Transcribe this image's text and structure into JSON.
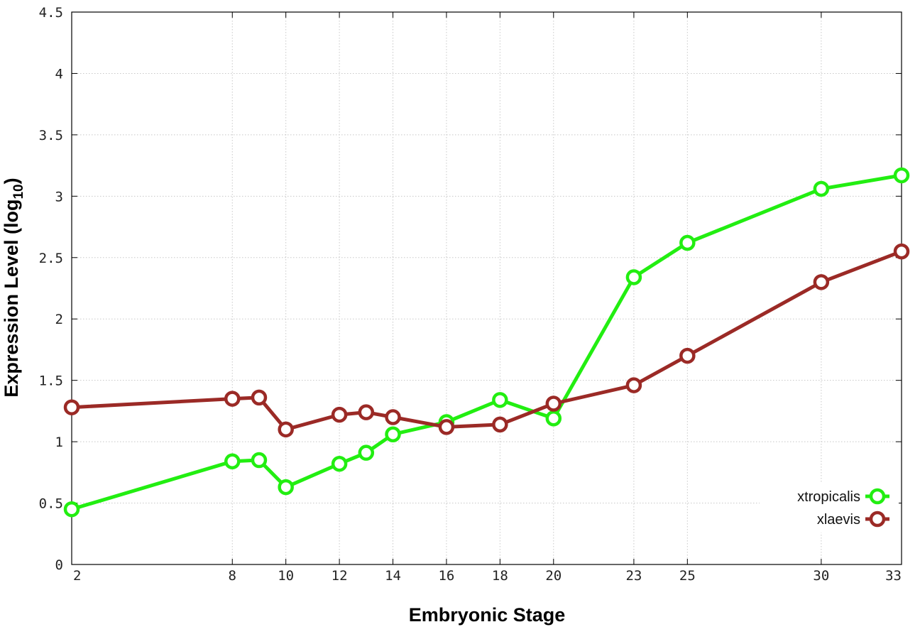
{
  "chart_data": {
    "type": "line",
    "xlabel": "Embryonic Stage",
    "ylabel": "Expression Level (log",
    "ylabel_subscript": "10",
    "ylabel_suffix": ")",
    "x_ticks": [
      2,
      8,
      10,
      12,
      14,
      16,
      18,
      20,
      23,
      25,
      30,
      33
    ],
    "xlim": [
      2,
      33
    ],
    "y_ticks": [
      "0",
      "0.5",
      "1",
      "1.5",
      "2",
      "2.5",
      "3",
      "3.5",
      "4",
      "4.5"
    ],
    "ylim": [
      0,
      4.5
    ],
    "grid": true,
    "legend_position": "bottom-right",
    "x": [
      2,
      8,
      9,
      10,
      12,
      13,
      14,
      16,
      18,
      20,
      23,
      25,
      30,
      33
    ],
    "series": [
      {
        "name": "xtropicalis",
        "color": "#22ee11",
        "values": [
          0.45,
          0.84,
          0.85,
          0.63,
          0.82,
          0.91,
          1.06,
          1.16,
          1.34,
          1.19,
          2.34,
          2.62,
          3.06,
          3.17
        ]
      },
      {
        "name": "xlaevis",
        "color": "#9b2a26",
        "values": [
          1.28,
          1.35,
          1.36,
          1.1,
          1.22,
          1.24,
          1.2,
          1.12,
          1.14,
          1.31,
          1.46,
          1.7,
          2.3,
          2.55
        ]
      }
    ]
  }
}
